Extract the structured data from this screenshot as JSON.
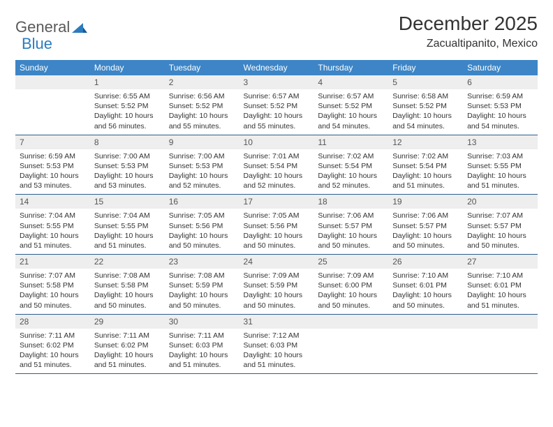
{
  "logo": {
    "text1": "General",
    "text2": "Blue"
  },
  "title": "December 2025",
  "location": "Zacualtipanito, Mexico",
  "colors": {
    "header_bg": "#3d85c6",
    "header_fg": "#ffffff",
    "daynum_bg": "#eeeeee",
    "row_border": "#2b5f8e",
    "logo_gray": "#5a5a5a",
    "logo_blue": "#2b7bbf"
  },
  "weekdays": [
    "Sunday",
    "Monday",
    "Tuesday",
    "Wednesday",
    "Thursday",
    "Friday",
    "Saturday"
  ],
  "weeks": [
    [
      {
        "n": "",
        "lines": []
      },
      {
        "n": "1",
        "lines": [
          "Sunrise: 6:55 AM",
          "Sunset: 5:52 PM",
          "Daylight: 10 hours and 56 minutes."
        ]
      },
      {
        "n": "2",
        "lines": [
          "Sunrise: 6:56 AM",
          "Sunset: 5:52 PM",
          "Daylight: 10 hours and 55 minutes."
        ]
      },
      {
        "n": "3",
        "lines": [
          "Sunrise: 6:57 AM",
          "Sunset: 5:52 PM",
          "Daylight: 10 hours and 55 minutes."
        ]
      },
      {
        "n": "4",
        "lines": [
          "Sunrise: 6:57 AM",
          "Sunset: 5:52 PM",
          "Daylight: 10 hours and 54 minutes."
        ]
      },
      {
        "n": "5",
        "lines": [
          "Sunrise: 6:58 AM",
          "Sunset: 5:52 PM",
          "Daylight: 10 hours and 54 minutes."
        ]
      },
      {
        "n": "6",
        "lines": [
          "Sunrise: 6:59 AM",
          "Sunset: 5:53 PM",
          "Daylight: 10 hours and 54 minutes."
        ]
      }
    ],
    [
      {
        "n": "7",
        "lines": [
          "Sunrise: 6:59 AM",
          "Sunset: 5:53 PM",
          "Daylight: 10 hours and 53 minutes."
        ]
      },
      {
        "n": "8",
        "lines": [
          "Sunrise: 7:00 AM",
          "Sunset: 5:53 PM",
          "Daylight: 10 hours and 53 minutes."
        ]
      },
      {
        "n": "9",
        "lines": [
          "Sunrise: 7:00 AM",
          "Sunset: 5:53 PM",
          "Daylight: 10 hours and 52 minutes."
        ]
      },
      {
        "n": "10",
        "lines": [
          "Sunrise: 7:01 AM",
          "Sunset: 5:54 PM",
          "Daylight: 10 hours and 52 minutes."
        ]
      },
      {
        "n": "11",
        "lines": [
          "Sunrise: 7:02 AM",
          "Sunset: 5:54 PM",
          "Daylight: 10 hours and 52 minutes."
        ]
      },
      {
        "n": "12",
        "lines": [
          "Sunrise: 7:02 AM",
          "Sunset: 5:54 PM",
          "Daylight: 10 hours and 51 minutes."
        ]
      },
      {
        "n": "13",
        "lines": [
          "Sunrise: 7:03 AM",
          "Sunset: 5:55 PM",
          "Daylight: 10 hours and 51 minutes."
        ]
      }
    ],
    [
      {
        "n": "14",
        "lines": [
          "Sunrise: 7:04 AM",
          "Sunset: 5:55 PM",
          "Daylight: 10 hours and 51 minutes."
        ]
      },
      {
        "n": "15",
        "lines": [
          "Sunrise: 7:04 AM",
          "Sunset: 5:55 PM",
          "Daylight: 10 hours and 51 minutes."
        ]
      },
      {
        "n": "16",
        "lines": [
          "Sunrise: 7:05 AM",
          "Sunset: 5:56 PM",
          "Daylight: 10 hours and 50 minutes."
        ]
      },
      {
        "n": "17",
        "lines": [
          "Sunrise: 7:05 AM",
          "Sunset: 5:56 PM",
          "Daylight: 10 hours and 50 minutes."
        ]
      },
      {
        "n": "18",
        "lines": [
          "Sunrise: 7:06 AM",
          "Sunset: 5:57 PM",
          "Daylight: 10 hours and 50 minutes."
        ]
      },
      {
        "n": "19",
        "lines": [
          "Sunrise: 7:06 AM",
          "Sunset: 5:57 PM",
          "Daylight: 10 hours and 50 minutes."
        ]
      },
      {
        "n": "20",
        "lines": [
          "Sunrise: 7:07 AM",
          "Sunset: 5:57 PM",
          "Daylight: 10 hours and 50 minutes."
        ]
      }
    ],
    [
      {
        "n": "21",
        "lines": [
          "Sunrise: 7:07 AM",
          "Sunset: 5:58 PM",
          "Daylight: 10 hours and 50 minutes."
        ]
      },
      {
        "n": "22",
        "lines": [
          "Sunrise: 7:08 AM",
          "Sunset: 5:58 PM",
          "Daylight: 10 hours and 50 minutes."
        ]
      },
      {
        "n": "23",
        "lines": [
          "Sunrise: 7:08 AM",
          "Sunset: 5:59 PM",
          "Daylight: 10 hours and 50 minutes."
        ]
      },
      {
        "n": "24",
        "lines": [
          "Sunrise: 7:09 AM",
          "Sunset: 5:59 PM",
          "Daylight: 10 hours and 50 minutes."
        ]
      },
      {
        "n": "25",
        "lines": [
          "Sunrise: 7:09 AM",
          "Sunset: 6:00 PM",
          "Daylight: 10 hours and 50 minutes."
        ]
      },
      {
        "n": "26",
        "lines": [
          "Sunrise: 7:10 AM",
          "Sunset: 6:01 PM",
          "Daylight: 10 hours and 50 minutes."
        ]
      },
      {
        "n": "27",
        "lines": [
          "Sunrise: 7:10 AM",
          "Sunset: 6:01 PM",
          "Daylight: 10 hours and 51 minutes."
        ]
      }
    ],
    [
      {
        "n": "28",
        "lines": [
          "Sunrise: 7:11 AM",
          "Sunset: 6:02 PM",
          "Daylight: 10 hours and 51 minutes."
        ]
      },
      {
        "n": "29",
        "lines": [
          "Sunrise: 7:11 AM",
          "Sunset: 6:02 PM",
          "Daylight: 10 hours and 51 minutes."
        ]
      },
      {
        "n": "30",
        "lines": [
          "Sunrise: 7:11 AM",
          "Sunset: 6:03 PM",
          "Daylight: 10 hours and 51 minutes."
        ]
      },
      {
        "n": "31",
        "lines": [
          "Sunrise: 7:12 AM",
          "Sunset: 6:03 PM",
          "Daylight: 10 hours and 51 minutes."
        ]
      },
      {
        "n": "",
        "lines": []
      },
      {
        "n": "",
        "lines": []
      },
      {
        "n": "",
        "lines": []
      }
    ]
  ]
}
